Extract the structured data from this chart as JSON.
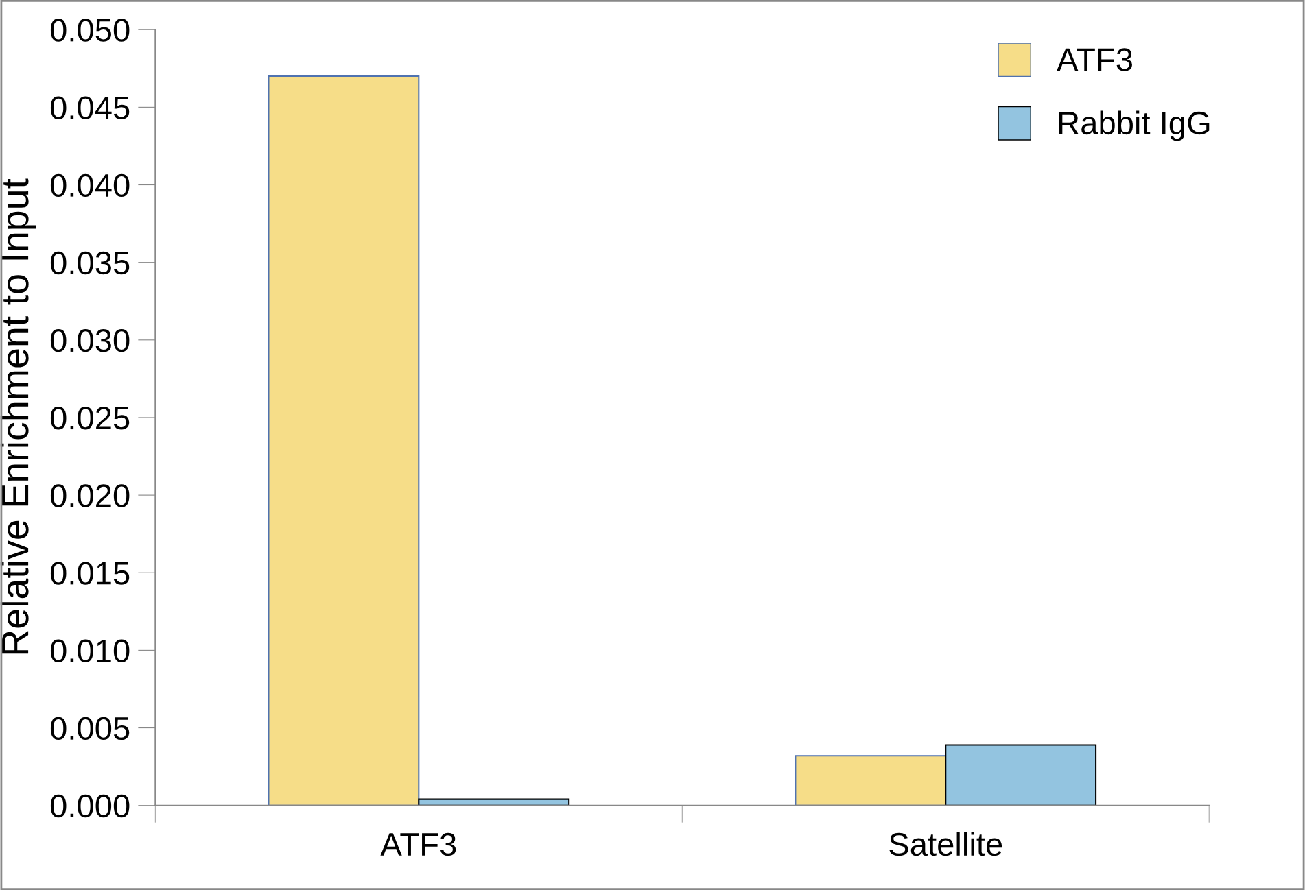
{
  "chart_data": {
    "type": "bar",
    "ylabel": "Relative Enrichment to Input",
    "categories": [
      "ATF3",
      "Satellite"
    ],
    "series": [
      {
        "name": "ATF3",
        "color": "#f6dd88",
        "values": [
          0.047,
          0.0032
        ]
      },
      {
        "name": "Rabbit IgG",
        "color": "#93c4e0",
        "values": [
          0.0004,
          0.0039
        ]
      }
    ],
    "ylim": [
      0,
      0.05
    ],
    "yticks": [
      {
        "value": 0,
        "label": "0.000"
      },
      {
        "value": 0.005,
        "label": "0.005"
      },
      {
        "value": 0.01,
        "label": "0.010"
      },
      {
        "value": 0.015,
        "label": "0.015"
      },
      {
        "value": 0.02,
        "label": "0.020"
      },
      {
        "value": 0.025,
        "label": "0.025"
      },
      {
        "value": 0.03,
        "label": "0.030"
      },
      {
        "value": 0.035,
        "label": "0.035"
      },
      {
        "value": 0.04,
        "label": "0.040"
      },
      {
        "value": 0.045,
        "label": "0.045"
      },
      {
        "value": 0.05,
        "label": "0.050"
      }
    ],
    "grid": false,
    "legend": "top right"
  }
}
